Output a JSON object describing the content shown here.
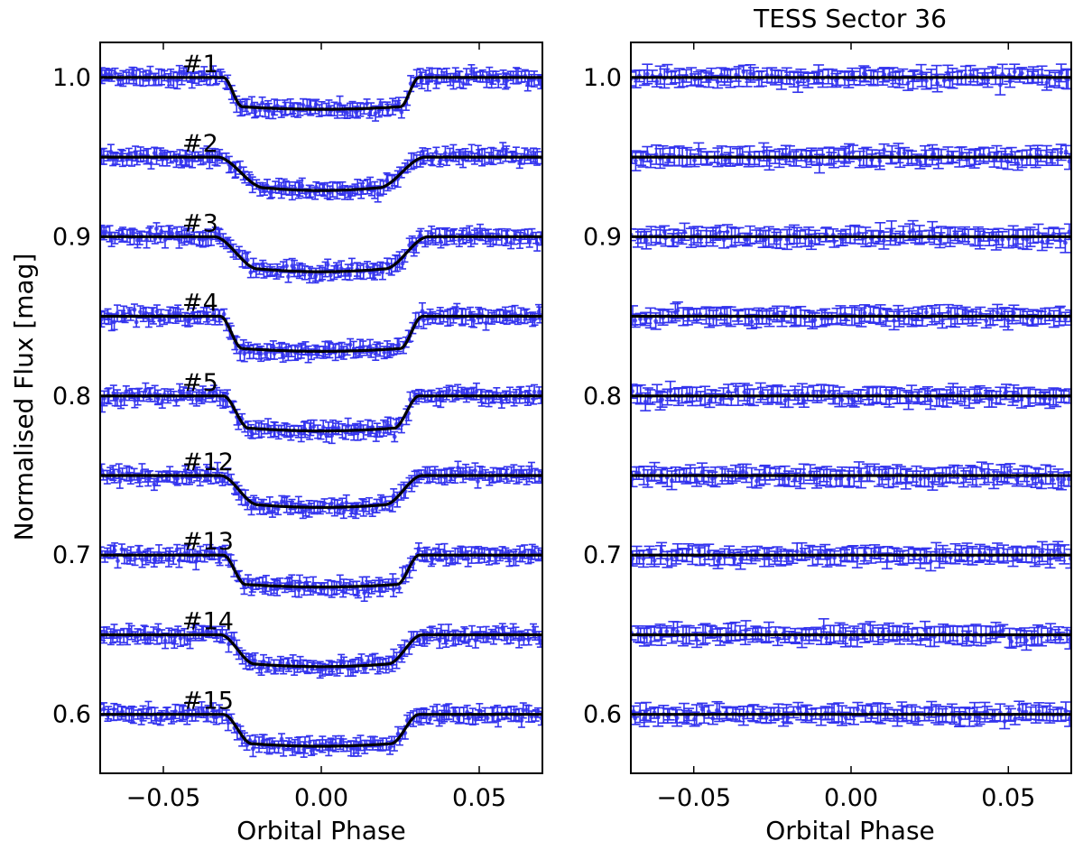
{
  "chart_data": [
    {
      "panel": "left",
      "type": "scatter",
      "title": "",
      "xlabel": "Orbital Phase",
      "ylabel": "Normalised Flux [mag]",
      "xlim": [
        -0.07,
        0.07
      ],
      "ylim": [
        0.563,
        1.022
      ],
      "xticks": [
        -0.05,
        0.0,
        0.05
      ],
      "xtick_labels": [
        "−0.05",
        "0.00",
        "0.05"
      ],
      "yticks": [
        0.6,
        0.7,
        0.8,
        0.9,
        1.0
      ],
      "ytick_labels": [
        "0.6",
        "0.7",
        "0.8",
        "0.9",
        "1.0"
      ],
      "point_color": "#3333ee",
      "model_color": "#000000",
      "series": [
        {
          "name": "#1",
          "offset": 1.0,
          "depth": 0.02,
          "t14": 0.062,
          "t23": 0.05
        },
        {
          "name": "#2",
          "offset": 0.95,
          "depth": 0.021,
          "t14": 0.066,
          "t23": 0.036
        },
        {
          "name": "#3",
          "offset": 0.9,
          "depth": 0.022,
          "t14": 0.068,
          "t23": 0.04
        },
        {
          "name": "#4",
          "offset": 0.85,
          "depth": 0.022,
          "t14": 0.064,
          "t23": 0.05
        },
        {
          "name": "#5",
          "offset": 0.8,
          "depth": 0.022,
          "t14": 0.062,
          "t23": 0.046
        },
        {
          "name": "#12",
          "offset": 0.75,
          "depth": 0.02,
          "t14": 0.064,
          "t23": 0.04
        },
        {
          "name": "#13",
          "offset": 0.7,
          "depth": 0.02,
          "t14": 0.062,
          "t23": 0.048
        },
        {
          "name": "#14",
          "offset": 0.65,
          "depth": 0.02,
          "t14": 0.064,
          "t23": 0.042
        },
        {
          "name": "#15",
          "offset": 0.6,
          "depth": 0.02,
          "t14": 0.062,
          "t23": 0.044
        }
      ]
    },
    {
      "panel": "right",
      "type": "scatter",
      "title": "TESS Sector 36",
      "xlabel": "Orbital Phase",
      "ylabel": "",
      "xlim": [
        -0.07,
        0.07
      ],
      "ylim": [
        0.563,
        1.022
      ],
      "xticks": [
        -0.05,
        0.0,
        0.05
      ],
      "xtick_labels": [
        "−0.05",
        "0.00",
        "0.05"
      ],
      "yticks": [
        0.6,
        0.7,
        0.8,
        0.9,
        1.0
      ],
      "ytick_labels": [
        "0.6",
        "0.7",
        "0.8",
        "0.9",
        "1.0"
      ],
      "point_color": "#3333ee",
      "model_color": "#000000",
      "series": [
        {
          "offset": 1.0,
          "depth": 0
        },
        {
          "offset": 0.95,
          "depth": 0
        },
        {
          "offset": 0.9,
          "depth": 0
        },
        {
          "offset": 0.85,
          "depth": 0
        },
        {
          "offset": 0.8,
          "depth": 0
        },
        {
          "offset": 0.75,
          "depth": 0
        },
        {
          "offset": 0.7,
          "depth": 0
        },
        {
          "offset": 0.65,
          "depth": 0
        },
        {
          "offset": 0.6,
          "depth": 0
        }
      ]
    }
  ]
}
